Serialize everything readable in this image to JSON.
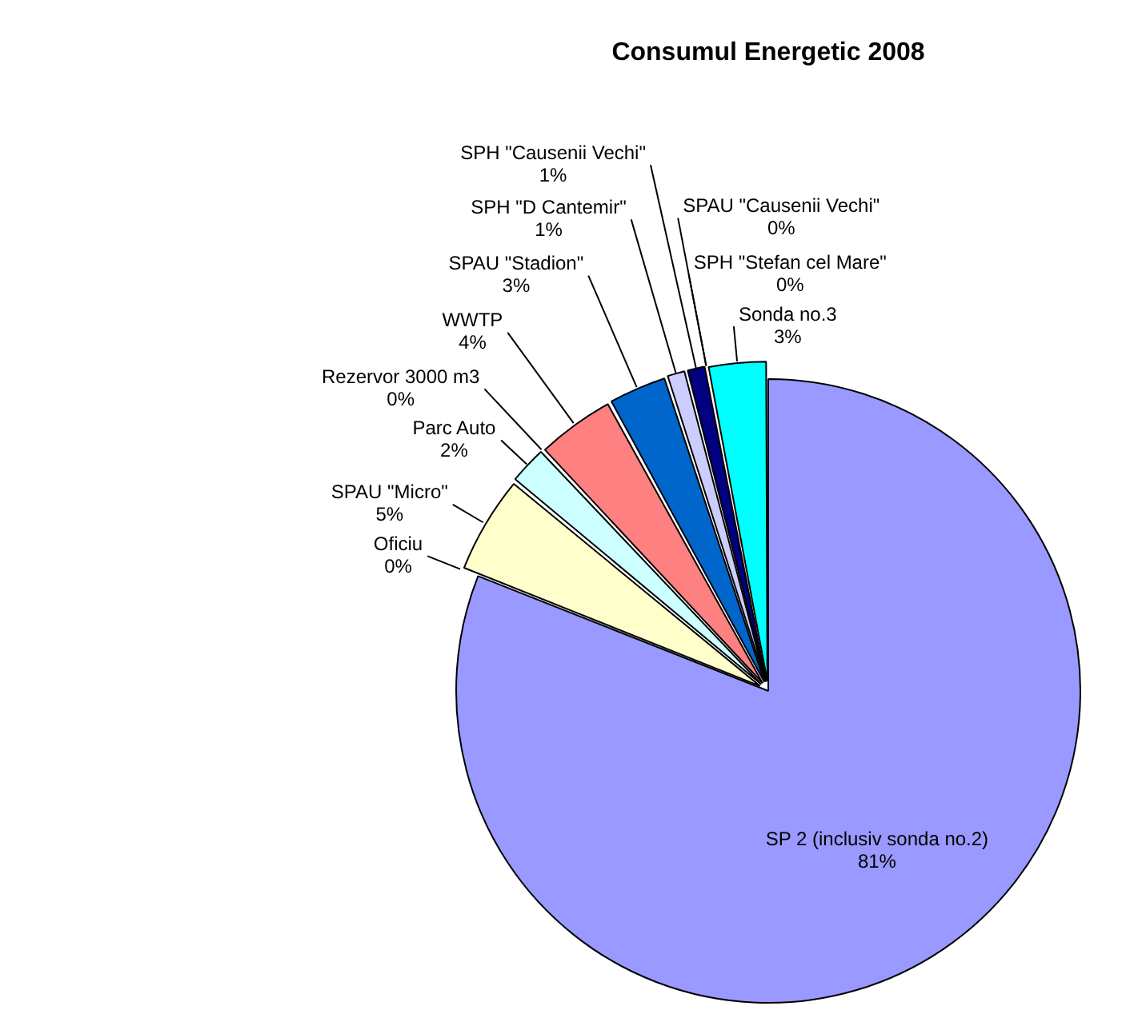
{
  "chart_data": {
    "type": "pie",
    "title": "Consumul Energetic 2008",
    "categories": [
      "SP 2 (inclusiv sonda no.2)",
      "Oficiu",
      "SPAU \"Micro\"",
      "Parc Auto",
      "Rezervor 3000 m3",
      "WWTP",
      "SPAU \"Stadion\"",
      "SPH \"D Cantemir\"",
      "SPH \"Causenii Vechi\"",
      "SPAU \"Causenii Vechi\"",
      "SPH \"Stefan cel Mare\"",
      "Sonda no.3"
    ],
    "values": [
      81,
      0,
      5,
      2,
      0,
      4,
      3,
      1,
      1,
      0,
      0,
      3
    ],
    "value_labels": [
      "81%",
      "0%",
      "5%",
      "2%",
      "0%",
      "4%",
      "3%",
      "1%",
      "1%",
      "0%",
      "0%",
      "3%"
    ],
    "colors": [
      "#9999ff",
      "#993366",
      "#ffffcc",
      "#ccffff",
      "#660066",
      "#ff8080",
      "#0066cc",
      "#ccccff",
      "#000080",
      "#ff00ff",
      "#ffff00",
      "#00ffff"
    ]
  }
}
